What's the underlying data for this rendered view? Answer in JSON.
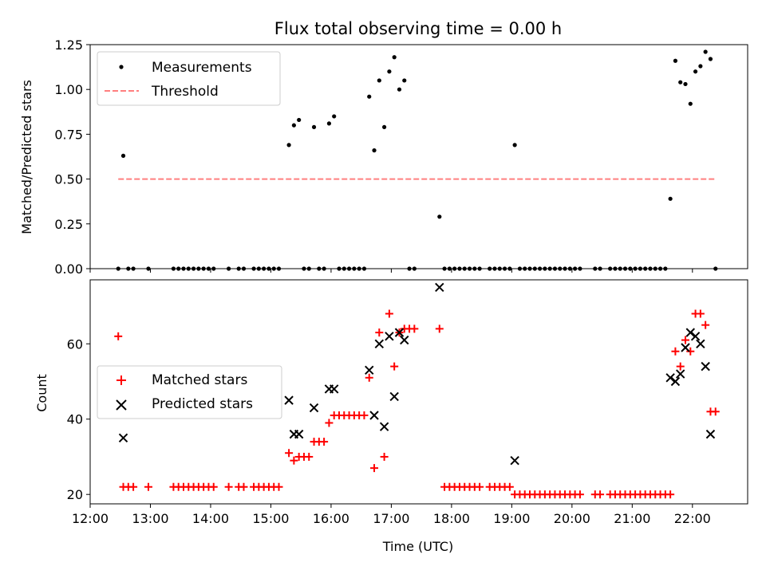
{
  "figure": {
    "title": "Flux total observing time = 0.00 h",
    "xlabel": "Time (UTC)"
  },
  "chart_data": [
    {
      "type": "scatter",
      "panel": "top",
      "ylabel": "Matched/Predicted stars",
      "xlim": [
        "12:00",
        "22:55"
      ],
      "ylim": [
        0,
        1.25
      ],
      "yticks": [
        "0.00",
        "0.25",
        "0.50",
        "0.75",
        "1.00",
        "1.25"
      ],
      "legend": "upper left",
      "series": [
        {
          "name": "Measurements",
          "color": "#000000",
          "marker": "dot",
          "points": [
            [
              "12:28",
              0
            ],
            [
              "12:33",
              0.63
            ],
            [
              "12:38",
              0
            ],
            [
              "12:43",
              0
            ],
            [
              "12:58",
              0
            ],
            [
              "13:23",
              0
            ],
            [
              "13:28",
              0
            ],
            [
              "13:33",
              0
            ],
            [
              "13:38",
              0
            ],
            [
              "13:43",
              0
            ],
            [
              "13:48",
              0
            ],
            [
              "13:53",
              0
            ],
            [
              "13:58",
              0
            ],
            [
              "14:03",
              0
            ],
            [
              "14:18",
              0
            ],
            [
              "14:28",
              0
            ],
            [
              "14:33",
              0
            ],
            [
              "14:43",
              0
            ],
            [
              "14:48",
              0
            ],
            [
              "14:53",
              0
            ],
            [
              "14:58",
              0
            ],
            [
              "15:03",
              0
            ],
            [
              "15:08",
              0
            ],
            [
              "15:18",
              0.69
            ],
            [
              "15:23",
              0.8
            ],
            [
              "15:28",
              0.83
            ],
            [
              "15:33",
              0
            ],
            [
              "15:38",
              0
            ],
            [
              "15:43",
              0.79
            ],
            [
              "15:48",
              0
            ],
            [
              "15:53",
              0
            ],
            [
              "15:58",
              0.81
            ],
            [
              "16:03",
              0.85
            ],
            [
              "16:08",
              0
            ],
            [
              "16:13",
              0
            ],
            [
              "16:18",
              0
            ],
            [
              "16:23",
              0
            ],
            [
              "16:28",
              0
            ],
            [
              "16:33",
              0
            ],
            [
              "16:38",
              0.96
            ],
            [
              "16:43",
              0.66
            ],
            [
              "16:48",
              1.05
            ],
            [
              "16:53",
              0.79
            ],
            [
              "16:58",
              1.1
            ],
            [
              "17:03",
              1.18
            ],
            [
              "17:08",
              1.0
            ],
            [
              "17:13",
              1.05
            ],
            [
              "17:18",
              0
            ],
            [
              "17:23",
              0
            ],
            [
              "17:48",
              0.29
            ],
            [
              "17:53",
              0
            ],
            [
              "17:58",
              0
            ],
            [
              "18:03",
              0
            ],
            [
              "18:08",
              0
            ],
            [
              "18:13",
              0
            ],
            [
              "18:18",
              0
            ],
            [
              "18:23",
              0
            ],
            [
              "18:28",
              0
            ],
            [
              "18:38",
              0
            ],
            [
              "18:43",
              0
            ],
            [
              "18:48",
              0
            ],
            [
              "18:53",
              0
            ],
            [
              "18:58",
              0
            ],
            [
              "19:03",
              0.69
            ],
            [
              "19:08",
              0
            ],
            [
              "19:13",
              0
            ],
            [
              "19:18",
              0
            ],
            [
              "19:23",
              0
            ],
            [
              "19:28",
              0
            ],
            [
              "19:33",
              0
            ],
            [
              "19:38",
              0
            ],
            [
              "19:43",
              0
            ],
            [
              "19:48",
              0
            ],
            [
              "19:53",
              0
            ],
            [
              "19:58",
              0
            ],
            [
              "20:03",
              0
            ],
            [
              "20:08",
              0
            ],
            [
              "20:23",
              0
            ],
            [
              "20:28",
              0
            ],
            [
              "20:38",
              0
            ],
            [
              "20:43",
              0
            ],
            [
              "20:48",
              0
            ],
            [
              "20:53",
              0
            ],
            [
              "20:58",
              0
            ],
            [
              "21:03",
              0
            ],
            [
              "21:08",
              0
            ],
            [
              "21:13",
              0
            ],
            [
              "21:18",
              0
            ],
            [
              "21:23",
              0
            ],
            [
              "21:28",
              0
            ],
            [
              "21:33",
              0
            ],
            [
              "21:38",
              0.39
            ],
            [
              "21:43",
              1.16
            ],
            [
              "21:48",
              1.04
            ],
            [
              "21:53",
              1.03
            ],
            [
              "21:58",
              0.92
            ],
            [
              "22:03",
              1.1
            ],
            [
              "22:08",
              1.13
            ],
            [
              "22:13",
              1.21
            ],
            [
              "22:18",
              1.17
            ],
            [
              "22:23",
              0
            ]
          ]
        },
        {
          "name": "Threshold",
          "color": "#ff7f7f",
          "type": "line",
          "dash": true,
          "points": [
            [
              "12:28",
              0.5
            ],
            [
              "22:23",
              0.5
            ]
          ]
        }
      ]
    },
    {
      "type": "scatter",
      "panel": "bottom",
      "ylabel": "Count",
      "xlim": [
        "12:00",
        "22:55"
      ],
      "ylim": [
        17.5,
        77
      ],
      "yticks": [
        "20",
        "40",
        "60"
      ],
      "xticks": [
        "12:00",
        "13:00",
        "14:00",
        "15:00",
        "16:00",
        "17:00",
        "18:00",
        "19:00",
        "20:00",
        "21:00",
        "22:00"
      ],
      "legend": "center left",
      "series": [
        {
          "name": "Matched stars",
          "color": "#ff0000",
          "marker": "plus",
          "points": [
            [
              "12:28",
              62
            ],
            [
              "12:33",
              22
            ],
            [
              "12:38",
              22
            ],
            [
              "12:43",
              22
            ],
            [
              "12:58",
              22
            ],
            [
              "13:23",
              22
            ],
            [
              "13:28",
              22
            ],
            [
              "13:33",
              22
            ],
            [
              "13:38",
              22
            ],
            [
              "13:43",
              22
            ],
            [
              "13:48",
              22
            ],
            [
              "13:53",
              22
            ],
            [
              "13:58",
              22
            ],
            [
              "14:03",
              22
            ],
            [
              "14:18",
              22
            ],
            [
              "14:28",
              22
            ],
            [
              "14:33",
              22
            ],
            [
              "14:43",
              22
            ],
            [
              "14:48",
              22
            ],
            [
              "14:53",
              22
            ],
            [
              "14:58",
              22
            ],
            [
              "15:03",
              22
            ],
            [
              "15:08",
              22
            ],
            [
              "15:18",
              31
            ],
            [
              "15:23",
              29
            ],
            [
              "15:28",
              30
            ],
            [
              "15:33",
              30
            ],
            [
              "15:38",
              30
            ],
            [
              "15:43",
              34
            ],
            [
              "15:48",
              34
            ],
            [
              "15:53",
              34
            ],
            [
              "15:58",
              39
            ],
            [
              "16:03",
              41
            ],
            [
              "16:08",
              41
            ],
            [
              "16:13",
              41
            ],
            [
              "16:18",
              41
            ],
            [
              "16:23",
              41
            ],
            [
              "16:28",
              41
            ],
            [
              "16:33",
              41
            ],
            [
              "16:38",
              51
            ],
            [
              "16:43",
              27
            ],
            [
              "16:48",
              63
            ],
            [
              "16:53",
              30
            ],
            [
              "16:58",
              68
            ],
            [
              "17:03",
              54
            ],
            [
              "17:08",
              63
            ],
            [
              "17:13",
              64
            ],
            [
              "17:18",
              64
            ],
            [
              "17:23",
              64
            ],
            [
              "17:48",
              64
            ],
            [
              "17:53",
              22
            ],
            [
              "17:58",
              22
            ],
            [
              "18:03",
              22
            ],
            [
              "18:08",
              22
            ],
            [
              "18:13",
              22
            ],
            [
              "18:18",
              22
            ],
            [
              "18:23",
              22
            ],
            [
              "18:28",
              22
            ],
            [
              "18:38",
              22
            ],
            [
              "18:43",
              22
            ],
            [
              "18:48",
              22
            ],
            [
              "18:53",
              22
            ],
            [
              "18:58",
              22
            ],
            [
              "19:03",
              20
            ],
            [
              "19:08",
              20
            ],
            [
              "19:13",
              20
            ],
            [
              "19:18",
              20
            ],
            [
              "19:23",
              20
            ],
            [
              "19:28",
              20
            ],
            [
              "19:33",
              20
            ],
            [
              "19:38",
              20
            ],
            [
              "19:43",
              20
            ],
            [
              "19:48",
              20
            ],
            [
              "19:53",
              20
            ],
            [
              "19:58",
              20
            ],
            [
              "20:03",
              20
            ],
            [
              "20:08",
              20
            ],
            [
              "20:23",
              20
            ],
            [
              "20:28",
              20
            ],
            [
              "20:38",
              20
            ],
            [
              "20:43",
              20
            ],
            [
              "20:48",
              20
            ],
            [
              "20:53",
              20
            ],
            [
              "20:58",
              20
            ],
            [
              "21:03",
              20
            ],
            [
              "21:08",
              20
            ],
            [
              "21:13",
              20
            ],
            [
              "21:18",
              20
            ],
            [
              "21:23",
              20
            ],
            [
              "21:28",
              20
            ],
            [
              "21:33",
              20
            ],
            [
              "21:38",
              20
            ],
            [
              "21:43",
              58
            ],
            [
              "21:48",
              54
            ],
            [
              "21:53",
              61
            ],
            [
              "21:58",
              58
            ],
            [
              "22:03",
              68
            ],
            [
              "22:08",
              68
            ],
            [
              "22:13",
              65
            ],
            [
              "22:18",
              42
            ],
            [
              "22:23",
              42
            ]
          ]
        },
        {
          "name": "Predicted stars",
          "color": "#000000",
          "marker": "x",
          "points": [
            [
              "12:33",
              35
            ],
            [
              "15:18",
              45
            ],
            [
              "15:23",
              36
            ],
            [
              "15:28",
              36
            ],
            [
              "15:43",
              43
            ],
            [
              "15:58",
              48
            ],
            [
              "16:03",
              48
            ],
            [
              "16:38",
              53
            ],
            [
              "16:43",
              41
            ],
            [
              "16:48",
              60
            ],
            [
              "16:53",
              38
            ],
            [
              "16:58",
              62
            ],
            [
              "17:03",
              46
            ],
            [
              "17:08",
              63
            ],
            [
              "17:13",
              61
            ],
            [
              "17:48",
              75
            ],
            [
              "19:03",
              29
            ],
            [
              "21:38",
              51
            ],
            [
              "21:43",
              50
            ],
            [
              "21:48",
              52
            ],
            [
              "21:53",
              59
            ],
            [
              "21:58",
              63
            ],
            [
              "22:03",
              62
            ],
            [
              "22:08",
              60
            ],
            [
              "22:13",
              54
            ],
            [
              "22:18",
              36
            ]
          ]
        }
      ]
    }
  ]
}
